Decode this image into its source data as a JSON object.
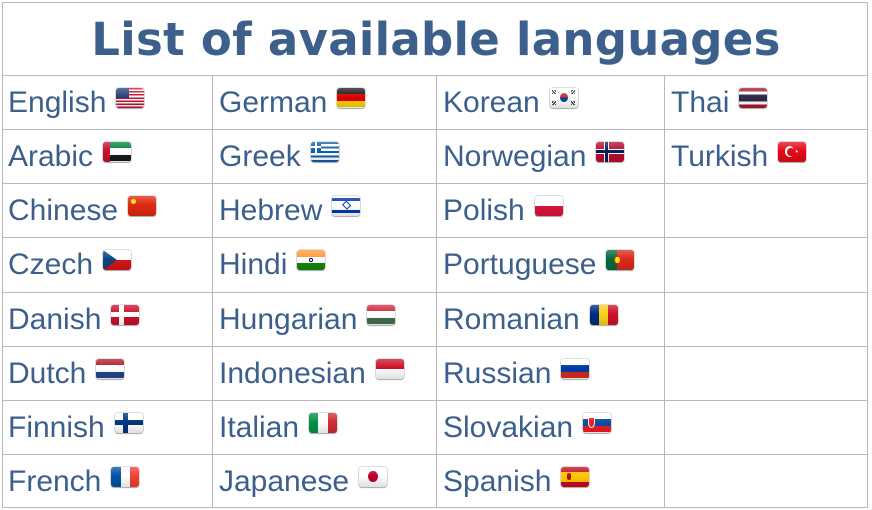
{
  "title": "List of available languages",
  "columns": [
    [
      {
        "name": "English",
        "flag": "us-flag-icon"
      },
      {
        "name": "Arabic",
        "flag": "uae-flag-icon"
      },
      {
        "name": "Chinese",
        "flag": "china-flag-icon"
      },
      {
        "name": "Czech",
        "flag": "czech-flag-icon"
      },
      {
        "name": "Danish",
        "flag": "denmark-flag-icon"
      },
      {
        "name": "Dutch",
        "flag": "netherlands-flag-icon"
      },
      {
        "name": "Finnish",
        "flag": "finland-flag-icon"
      },
      {
        "name": "French",
        "flag": "france-flag-icon"
      }
    ],
    [
      {
        "name": "German",
        "flag": "germany-flag-icon"
      },
      {
        "name": "Greek",
        "flag": "greece-flag-icon"
      },
      {
        "name": "Hebrew",
        "flag": "israel-flag-icon"
      },
      {
        "name": "Hindi",
        "flag": "india-flag-icon"
      },
      {
        "name": "Hungarian",
        "flag": "hungary-flag-icon"
      },
      {
        "name": "Indonesian",
        "flag": "indonesia-flag-icon"
      },
      {
        "name": "Italian",
        "flag": "italy-flag-icon"
      },
      {
        "name": "Japanese",
        "flag": "japan-flag-icon"
      }
    ],
    [
      {
        "name": "Korean",
        "flag": "south-korea-flag-icon"
      },
      {
        "name": "Norwegian",
        "flag": "norway-flag-icon"
      },
      {
        "name": "Polish",
        "flag": "poland-flag-icon"
      },
      {
        "name": "Portuguese",
        "flag": "portugal-flag-icon"
      },
      {
        "name": "Romanian",
        "flag": "romania-flag-icon"
      },
      {
        "name": "Russian",
        "flag": "russia-flag-icon"
      },
      {
        "name": "Slovakian",
        "flag": "slovakia-flag-icon"
      },
      {
        "name": "Spanish",
        "flag": "spain-flag-icon"
      }
    ],
    [
      {
        "name": "Thai",
        "flag": "thailand-flag-icon"
      },
      {
        "name": "Turkish",
        "flag": "turkey-flag-icon"
      }
    ]
  ],
  "colors": {
    "text": "#3c5f8c",
    "grid_line": "#b9b9b9",
    "background": "#ffffff"
  }
}
